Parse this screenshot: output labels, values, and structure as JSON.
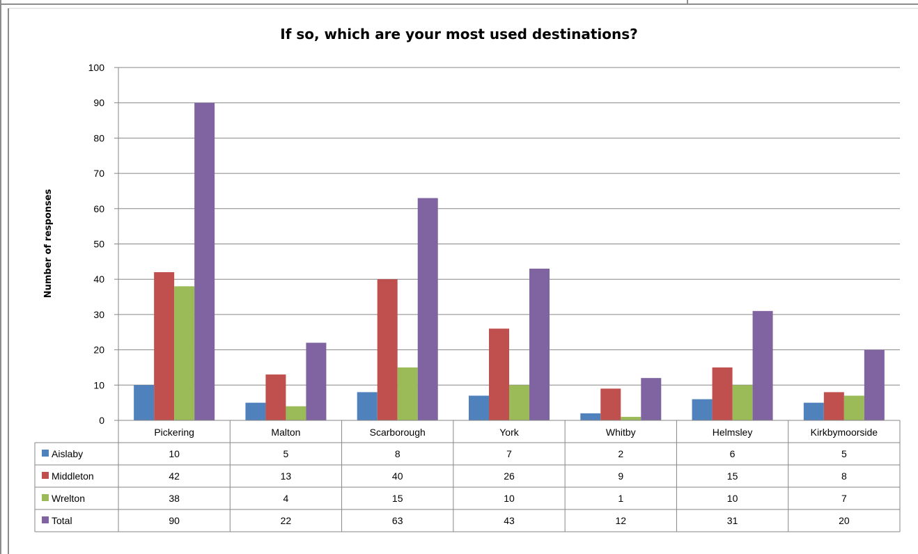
{
  "chart_data": {
    "type": "bar",
    "title": "If so, which are your most used destinations?",
    "xlabel": "",
    "ylabel": "Number of responses",
    "ylim": [
      0,
      100
    ],
    "yticks": [
      "0",
      "10",
      "20",
      "30",
      "40",
      "50",
      "60",
      "70",
      "80",
      "90",
      "100"
    ],
    "grid": true,
    "legend": "data-table",
    "categories": [
      "Pickering",
      "Malton",
      "Scarborough",
      "York",
      "Whitby",
      "Helmsley",
      "Kirkbymoorside"
    ],
    "series": [
      {
        "name": "Aislaby",
        "color": "#4f81bd",
        "values": [
          10,
          5,
          8,
          7,
          2,
          6,
          5
        ]
      },
      {
        "name": "Middleton",
        "color": "#c0504d",
        "values": [
          42,
          13,
          40,
          26,
          9,
          15,
          8
        ]
      },
      {
        "name": "Wrelton",
        "color": "#9bbb59",
        "values": [
          38,
          4,
          15,
          10,
          1,
          10,
          7
        ]
      },
      {
        "name": "Total",
        "color": "#8064a2",
        "values": [
          90,
          22,
          63,
          43,
          12,
          31,
          20
        ]
      }
    ]
  }
}
